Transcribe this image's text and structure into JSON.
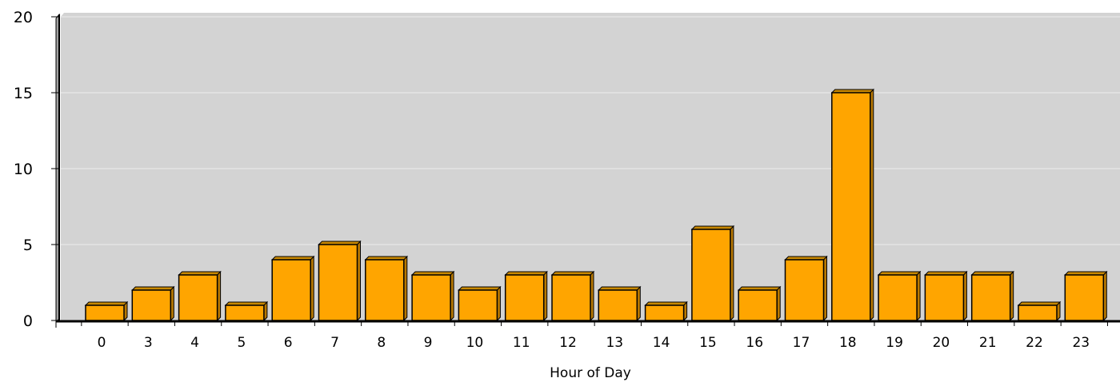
{
  "chart_data": {
    "type": "bar",
    "categories": [
      "0",
      "3",
      "4",
      "5",
      "6",
      "7",
      "8",
      "9",
      "10",
      "11",
      "12",
      "13",
      "14",
      "15",
      "16",
      "17",
      "18",
      "19",
      "20",
      "21",
      "22",
      "23"
    ],
    "values": [
      1,
      2,
      3,
      1,
      4,
      5,
      4,
      3,
      2,
      3,
      3,
      2,
      1,
      6,
      2,
      4,
      15,
      3,
      3,
      3,
      1,
      3
    ],
    "title": "",
    "xlabel": "Hour of Day",
    "ylabel": "",
    "ylim": [
      0,
      20
    ],
    "yticks": [
      0,
      5,
      10,
      15,
      20
    ],
    "grid": true,
    "legend": "none",
    "colors": {
      "bar_fill": "#FFA500",
      "bar_side": "#B87800",
      "bar_outline": "#000000",
      "plot_background": "#D3D3D3",
      "grid_line": "#E4E4E4",
      "axis": "#000000"
    }
  }
}
